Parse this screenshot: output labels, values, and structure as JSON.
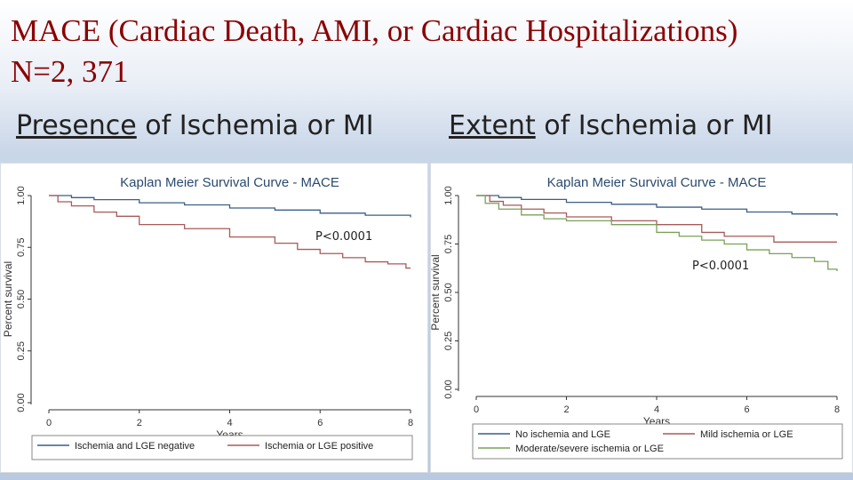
{
  "slide": {
    "title_line1": "MACE (Cardiac Death, AMI, or Cardiac Hospitalizations)",
    "title_line2": "N=2, 371",
    "left_label_emph": "Presence",
    "left_label_rest": " of Ischemia or MI",
    "right_label_emph": "Extent",
    "right_label_rest": " of Ischemia or MI"
  },
  "chart_data": [
    {
      "type": "line",
      "title": "Kaplan Meier Survival Curve - MACE",
      "xlabel": "Years",
      "ylabel": "Percent survival",
      "xlim": [
        0,
        8
      ],
      "ylim": [
        0,
        1
      ],
      "xticks": [
        "0",
        "2",
        "4",
        "6",
        "8"
      ],
      "yticks": [
        "0.00",
        "0.25",
        "0.50",
        "0.75",
        "1.00"
      ],
      "annotation": "P<0.0001",
      "series": [
        {
          "name": "Ischemia and LGE negative",
          "color": "#3a5f86",
          "x": [
            0,
            0.5,
            1,
            2,
            3,
            4,
            5,
            6,
            7,
            8
          ],
          "y": [
            1.0,
            0.99,
            0.98,
            0.965,
            0.955,
            0.94,
            0.93,
            0.915,
            0.905,
            0.895
          ]
        },
        {
          "name": "Ischemia or LGE positive",
          "color": "#a85a5a",
          "x": [
            0,
            0.2,
            0.5,
            1,
            1.5,
            2,
            3,
            4,
            5,
            5.5,
            6,
            6.5,
            7,
            7.5,
            7.9,
            8
          ],
          "y": [
            1.0,
            0.97,
            0.95,
            0.92,
            0.9,
            0.86,
            0.84,
            0.8,
            0.77,
            0.74,
            0.72,
            0.7,
            0.68,
            0.67,
            0.65,
            0.65
          ]
        }
      ]
    },
    {
      "type": "line",
      "title": "Kaplan Meier Survival Curve - MACE",
      "xlabel": "Years",
      "ylabel": "Percent survival",
      "xlim": [
        0,
        8
      ],
      "ylim": [
        0,
        1
      ],
      "xticks": [
        "0",
        "2",
        "4",
        "6",
        "8"
      ],
      "yticks": [
        "0.00",
        "0.25",
        "0.50",
        "0.75",
        "1.00"
      ],
      "annotation": "P<0.0001",
      "series": [
        {
          "name": "No ischemia and LGE",
          "color": "#3a5f86",
          "x": [
            0,
            0.5,
            1,
            2,
            3,
            4,
            5,
            6,
            7,
            8
          ],
          "y": [
            1.0,
            0.99,
            0.98,
            0.965,
            0.955,
            0.94,
            0.93,
            0.915,
            0.905,
            0.895
          ]
        },
        {
          "name": "Mild ischemia or LGE",
          "color": "#a85a5a",
          "x": [
            0,
            0.3,
            0.6,
            1,
            1.5,
            2,
            3,
            4,
            5,
            5.5,
            6,
            6.5,
            6.6,
            7,
            8
          ],
          "y": [
            1.0,
            0.97,
            0.95,
            0.93,
            0.91,
            0.89,
            0.87,
            0.85,
            0.81,
            0.79,
            0.79,
            0.79,
            0.76,
            0.76,
            0.76
          ]
        },
        {
          "name": "Moderate/severe ischemia or LGE",
          "color": "#7aa05a",
          "x": [
            0,
            0.2,
            0.5,
            1,
            1.5,
            2,
            3,
            4,
            4.5,
            5,
            5.5,
            6,
            6.5,
            7,
            7.5,
            7.8,
            8
          ],
          "y": [
            1.0,
            0.96,
            0.93,
            0.9,
            0.88,
            0.87,
            0.85,
            0.81,
            0.79,
            0.77,
            0.75,
            0.72,
            0.7,
            0.68,
            0.66,
            0.62,
            0.61
          ]
        }
      ]
    }
  ]
}
